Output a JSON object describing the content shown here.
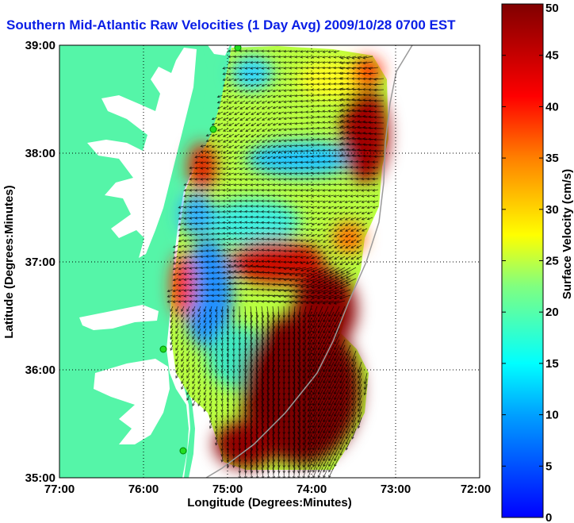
{
  "title": "Southern Mid-Atlantic Raw Velocities (1 Day Avg) 2009/10/28 0700 EST",
  "map": {
    "x_label": "Longitude (Degrees:Minutes)",
    "y_label": "Latitude (Degrees:Minutes)",
    "x_ticks": [
      "77:00",
      "76:00",
      "75:00",
      "74:00",
      "73:00",
      "72:00"
    ],
    "y_ticks": [
      "39:00",
      "38:00",
      "37:00",
      "36:00",
      "35:00"
    ],
    "lon_range": [
      -77,
      -72
    ],
    "lat_range": [
      35,
      39
    ],
    "land_color": "#55f5a8",
    "grid": "dotted"
  },
  "colorbar": {
    "label": "Surface Velocity (cm/s)",
    "ticks": [
      "0",
      "5",
      "10",
      "15",
      "20",
      "25",
      "30",
      "35",
      "40",
      "45",
      "50"
    ],
    "range": [
      0,
      50
    ],
    "colors": [
      "#0000ff",
      "#00a0ff",
      "#00ffff",
      "#80ff80",
      "#ffff00",
      "#ff8000",
      "#ff0000",
      "#800000"
    ]
  },
  "velocity_field": {
    "regions": [
      {
        "name": "north-central",
        "speed": 20
      },
      {
        "name": "central-low",
        "speed": 12
      },
      {
        "name": "west-coastal-low",
        "speed": 8
      },
      {
        "name": "southeast-high",
        "speed": 48
      },
      {
        "name": "northeast-high",
        "speed": 46
      },
      {
        "name": "coastal-jet",
        "speed": 40
      }
    ]
  }
}
